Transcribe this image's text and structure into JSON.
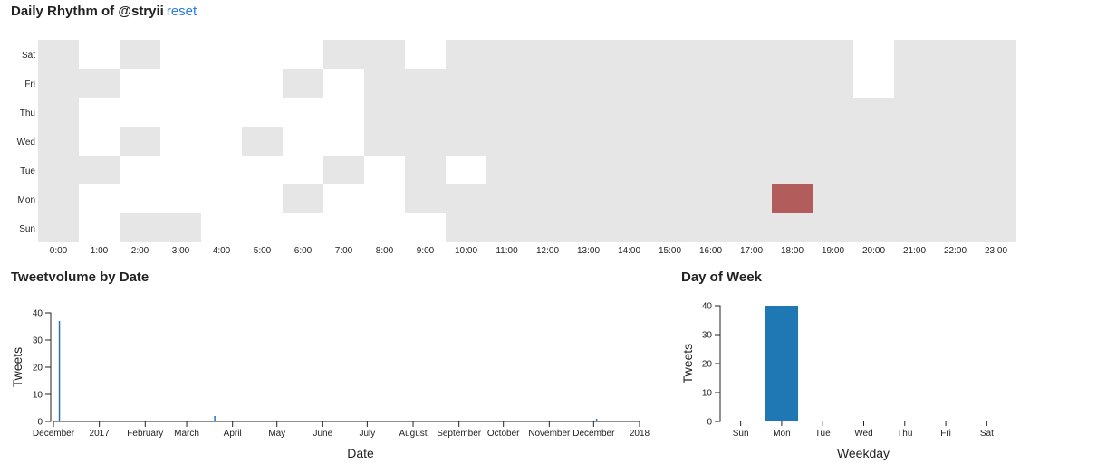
{
  "page": {
    "title": "Daily Rhythm of @stryii",
    "reset_label": "reset",
    "date_section_title": "Tweetvolume by Date",
    "weekday_section_title": "Day of Week"
  },
  "colors": {
    "cell_default": "#e6e6e6",
    "cell_highlight": "#b35c5c",
    "bar": "#1f77b4"
  },
  "chart_data": [
    {
      "type": "heatmap",
      "title": "Daily Rhythm of @stryii",
      "days": [
        "Sat",
        "Fri",
        "Thu",
        "Wed",
        "Tue",
        "Mon",
        "Sun"
      ],
      "hours": [
        "0:00",
        "1:00",
        "2:00",
        "3:00",
        "4:00",
        "5:00",
        "6:00",
        "7:00",
        "8:00",
        "9:00",
        "10:00",
        "11:00",
        "12:00",
        "13:00",
        "14:00",
        "15:00",
        "16:00",
        "17:00",
        "18:00",
        "19:00",
        "20:00",
        "21:00",
        "22:00",
        "23:00"
      ],
      "grid": [
        [
          1,
          0,
          1,
          0,
          0,
          0,
          0,
          1,
          1,
          0,
          1,
          1,
          1,
          1,
          1,
          1,
          1,
          1,
          1,
          1,
          0,
          1,
          1,
          1
        ],
        [
          1,
          1,
          0,
          0,
          0,
          0,
          1,
          0,
          1,
          1,
          1,
          1,
          1,
          1,
          1,
          1,
          1,
          1,
          1,
          1,
          0,
          1,
          1,
          1
        ],
        [
          1,
          0,
          0,
          0,
          0,
          0,
          0,
          0,
          1,
          1,
          1,
          1,
          1,
          1,
          1,
          1,
          1,
          1,
          1,
          1,
          1,
          1,
          1,
          1
        ],
        [
          1,
          0,
          1,
          0,
          0,
          1,
          0,
          0,
          1,
          1,
          1,
          1,
          1,
          1,
          1,
          1,
          1,
          1,
          1,
          1,
          1,
          1,
          1,
          1
        ],
        [
          1,
          1,
          0,
          0,
          0,
          0,
          0,
          1,
          0,
          1,
          0,
          1,
          1,
          1,
          1,
          1,
          1,
          1,
          1,
          1,
          1,
          1,
          1,
          1
        ],
        [
          1,
          0,
          0,
          0,
          0,
          0,
          1,
          0,
          0,
          1,
          1,
          1,
          1,
          1,
          1,
          1,
          1,
          1,
          2,
          1,
          1,
          1,
          1,
          1
        ],
        [
          1,
          0,
          1,
          1,
          0,
          0,
          0,
          0,
          0,
          0,
          1,
          1,
          1,
          1,
          1,
          1,
          1,
          1,
          1,
          1,
          1,
          1,
          1,
          1
        ]
      ],
      "grid_legend": "0 = no cell, 1 = grey cell, 2 = highlighted cell"
    },
    {
      "type": "bar",
      "title": "Tweetvolume by Date",
      "xlabel": "Date",
      "ylabel": "Tweets",
      "x_ticks": [
        "December",
        "2017",
        "February",
        "March",
        "April",
        "May",
        "June",
        "July",
        "August",
        "September",
        "October",
        "November",
        "December",
        "2018"
      ],
      "x_tick_dates": [
        "2016-12-01",
        "2017-01-01",
        "2017-02-01",
        "2017-03-01",
        "2017-04-01",
        "2017-05-01",
        "2017-06-01",
        "2017-07-01",
        "2017-08-01",
        "2017-09-01",
        "2017-10-01",
        "2017-11-01",
        "2017-12-01",
        "2018-01-01"
      ],
      "y_ticks": [
        0,
        10,
        20,
        30,
        40
      ],
      "ylim": [
        0,
        40
      ],
      "points": [
        {
          "date": "2016-12-05",
          "value": 37
        },
        {
          "date": "2017-03-20",
          "value": 2
        },
        {
          "date": "2017-12-03",
          "value": 1
        }
      ]
    },
    {
      "type": "bar",
      "title": "Day of Week",
      "xlabel": "Weekday",
      "ylabel": "Tweets",
      "categories": [
        "Sun",
        "Mon",
        "Tue",
        "Wed",
        "Thu",
        "Fri",
        "Sat"
      ],
      "values": [
        0,
        40,
        0,
        0,
        0,
        0,
        0
      ],
      "y_ticks": [
        0,
        10,
        20,
        30,
        40
      ],
      "ylim": [
        0,
        40
      ]
    }
  ]
}
